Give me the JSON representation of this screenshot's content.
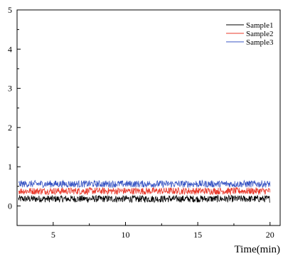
{
  "chart_data": {
    "type": "line",
    "title": "",
    "xlabel": "Time(min)",
    "ylabel": "",
    "xlim": [
      2.5,
      20.7
    ],
    "ylim": [
      -0.5,
      5
    ],
    "x_ticks": [
      "5",
      "10",
      "15",
      "20"
    ],
    "y_ticks": [
      "0",
      "1",
      "2",
      "3",
      "4",
      "5"
    ],
    "grid": false,
    "legend": "top-right",
    "x_range": [
      2.6,
      20.0
    ],
    "series": [
      {
        "name": "Sample1",
        "color": "#000000",
        "mean": 0.18,
        "noise": 0.09
      },
      {
        "name": "Sample2",
        "color": "#e8382a",
        "mean": 0.38,
        "noise": 0.09
      },
      {
        "name": "Sample3",
        "color": "#3a56c4",
        "mean": 0.56,
        "noise": 0.09
      }
    ]
  }
}
